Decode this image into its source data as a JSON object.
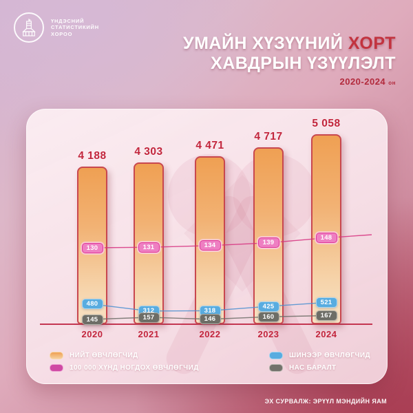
{
  "logo": {
    "line1": "ҮНДЭСНИЙ",
    "line2": "СТАТИСТИКИЙН",
    "line3": "ХОРОО"
  },
  "header": {
    "title_part1": "УМАЙН ХҮЗҮҮНИЙ ",
    "title_highlight": "ХОРТ",
    "title_line2": "ХАВДРЫН ҮЗҮҮЛЭЛТ",
    "subtitle_years": "2020-2024",
    "subtitle_suffix": "он"
  },
  "chart_data": {
    "type": "bar",
    "title": "УМАЙН ХҮЗҮҮНИЙ ХОРТ ХАВДРЫН ҮЗҮҮЛЭЛТ, 2020-2024 он",
    "categories": [
      "2020",
      "2021",
      "2022",
      "2023",
      "2024"
    ],
    "series": [
      {
        "name": "НИЙТ ӨВЧЛӨГЧИД",
        "type": "bar",
        "color": "#efa053",
        "values": [
          4188,
          4303,
          4471,
          4717,
          5058
        ],
        "labels": [
          "4 188",
          "4 303",
          "4 471",
          "4 717",
          "5 058"
        ]
      },
      {
        "name": "100 000 ХҮНД НОГДОХ ӨВЧЛӨГЧИД",
        "type": "line",
        "color": "#e0379b",
        "values": [
          130,
          131,
          134,
          139,
          148
        ]
      },
      {
        "name": "ШИНЭЭР ӨВЧЛӨГЧИД",
        "type": "line",
        "color": "#58ace0",
        "values": [
          480,
          312,
          318,
          425,
          521
        ]
      },
      {
        "name": "НАС БАРАЛТ",
        "type": "line",
        "color": "#6d6d66",
        "values": [
          145,
          157,
          146,
          160,
          167
        ]
      }
    ],
    "ylim": [
      0,
      5200
    ],
    "legend_position": "bottom",
    "grid": false
  },
  "legend": {
    "items": [
      {
        "label": "НИЙТ ӨВЧЛӨГЧИД",
        "color": "#efa053"
      },
      {
        "label": "100 000 ХҮНД НОГДОХ ӨВЧЛӨГЧИД",
        "color": "#cf4aa4"
      },
      {
        "label": "ШИНЭЭР ӨВЧЛӨГЧИД",
        "color": "#58ace0"
      },
      {
        "label": "НАС БАРАЛТ",
        "color": "#72726b"
      }
    ]
  },
  "footer": {
    "source": "ЭХ СУРВАЛЖ: ЭРҮҮЛ МЭНДИЙН ЯАМ"
  }
}
